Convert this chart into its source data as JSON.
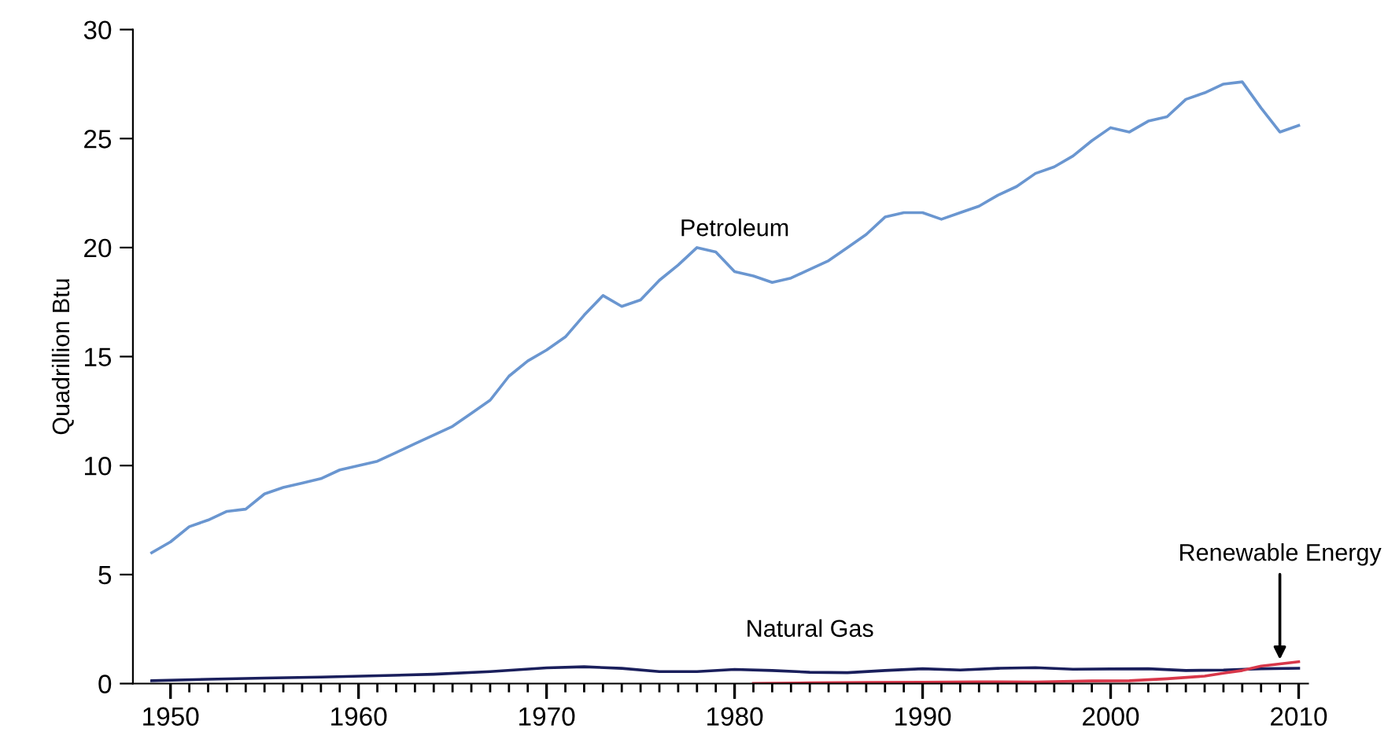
{
  "chart_data": {
    "type": "line",
    "ylabel": "Quadrillion Btu",
    "xlim": [
      1948,
      2010.5
    ],
    "ylim": [
      0,
      30
    ],
    "xticks": [
      1950,
      {
        "value": 1951,
        "label": null
      },
      {
        "value": 1952,
        "label": null
      },
      {
        "value": 1953,
        "label": null
      },
      {
        "value": 1954,
        "label": null
      },
      {
        "value": 1955,
        "label": null
      },
      {
        "value": 1956,
        "label": null
      },
      {
        "value": 1957,
        "label": null
      },
      {
        "value": 1958,
        "label": null
      },
      {
        "value": 1959,
        "label": null
      },
      1960,
      {
        "value": 1961,
        "label": null
      },
      {
        "value": 1962,
        "label": null
      },
      {
        "value": 1963,
        "label": null
      },
      {
        "value": 1964,
        "label": null
      },
      {
        "value": 1965,
        "label": null
      },
      {
        "value": 1966,
        "label": null
      },
      {
        "value": 1967,
        "label": null
      },
      {
        "value": 1968,
        "label": null
      },
      {
        "value": 1969,
        "label": null
      },
      1970,
      {
        "value": 1971,
        "label": null
      },
      {
        "value": 1972,
        "label": null
      },
      {
        "value": 1973,
        "label": null
      },
      {
        "value": 1974,
        "label": null
      },
      {
        "value": 1975,
        "label": null
      },
      {
        "value": 1976,
        "label": null
      },
      {
        "value": 1977,
        "label": null
      },
      {
        "value": 1978,
        "label": null
      },
      {
        "value": 1979,
        "label": null
      },
      1980,
      {
        "value": 1981,
        "label": null
      },
      {
        "value": 1982,
        "label": null
      },
      {
        "value": 1983,
        "label": null
      },
      {
        "value": 1984,
        "label": null
      },
      {
        "value": 1985,
        "label": null
      },
      {
        "value": 1986,
        "label": null
      },
      {
        "value": 1987,
        "label": null
      },
      {
        "value": 1988,
        "label": null
      },
      {
        "value": 1989,
        "label": null
      },
      1990,
      {
        "value": 1991,
        "label": null
      },
      {
        "value": 1992,
        "label": null
      },
      {
        "value": 1993,
        "label": null
      },
      {
        "value": 1994,
        "label": null
      },
      {
        "value": 1995,
        "label": null
      },
      {
        "value": 1996,
        "label": null
      },
      {
        "value": 1997,
        "label": null
      },
      {
        "value": 1998,
        "label": null
      },
      {
        "value": 1999,
        "label": null
      },
      2000,
      {
        "value": 2001,
        "label": null
      },
      {
        "value": 2002,
        "label": null
      },
      {
        "value": 2003,
        "label": null
      },
      {
        "value": 2004,
        "label": null
      },
      {
        "value": 2005,
        "label": null
      },
      {
        "value": 2006,
        "label": null
      },
      {
        "value": 2007,
        "label": null
      },
      {
        "value": 2008,
        "label": null
      },
      {
        "value": 2009,
        "label": null
      },
      2010
    ],
    "yticks": [
      0,
      5,
      10,
      15,
      20,
      25,
      30
    ],
    "grid": false,
    "legend": false,
    "marker": "none",
    "line_style": "solid",
    "series": [
      {
        "name": "Petroleum",
        "color": "#6a96d0",
        "x": [
          1949,
          1950,
          1951,
          1952,
          1953,
          1954,
          1955,
          1956,
          1957,
          1958,
          1959,
          1960,
          1961,
          1962,
          1963,
          1964,
          1965,
          1966,
          1967,
          1968,
          1969,
          1970,
          1971,
          1972,
          1973,
          1974,
          1975,
          1976,
          1977,
          1978,
          1979,
          1980,
          1981,
          1982,
          1983,
          1984,
          1985,
          1986,
          1987,
          1988,
          1989,
          1990,
          1991,
          1992,
          1993,
          1994,
          1995,
          1996,
          1997,
          1998,
          1999,
          2000,
          2001,
          2002,
          2003,
          2004,
          2005,
          2006,
          2007,
          2008,
          2009,
          2010
        ],
        "values": [
          6.0,
          6.5,
          7.2,
          7.5,
          7.9,
          8.0,
          8.7,
          9.0,
          9.2,
          9.4,
          9.8,
          10.0,
          10.2,
          10.6,
          11.0,
          11.4,
          11.8,
          12.4,
          13.0,
          14.1,
          14.8,
          15.3,
          15.9,
          16.9,
          17.8,
          17.3,
          17.6,
          18.5,
          19.2,
          20.0,
          19.8,
          18.9,
          18.7,
          18.4,
          18.6,
          19.0,
          19.4,
          20.0,
          20.6,
          21.4,
          21.6,
          21.6,
          21.3,
          21.6,
          21.9,
          22.4,
          22.8,
          23.4,
          23.7,
          24.2,
          24.9,
          25.5,
          25.3,
          25.8,
          26.0,
          26.8,
          27.1,
          27.5,
          27.6,
          26.4,
          25.3,
          25.6
        ]
      },
      {
        "name": "Natural Gas",
        "color": "#1a1f5c",
        "x": [
          1949,
          1952,
          1955,
          1958,
          1961,
          1964,
          1967,
          1970,
          1972,
          1974,
          1976,
          1978,
          1980,
          1982,
          1984,
          1986,
          1988,
          1990,
          1992,
          1994,
          1996,
          1998,
          2000,
          2002,
          2004,
          2006,
          2008,
          2010
        ],
        "values": [
          0.13,
          0.2,
          0.25,
          0.3,
          0.36,
          0.43,
          0.55,
          0.72,
          0.77,
          0.7,
          0.55,
          0.55,
          0.65,
          0.6,
          0.52,
          0.5,
          0.6,
          0.68,
          0.62,
          0.7,
          0.73,
          0.66,
          0.67,
          0.68,
          0.6,
          0.62,
          0.68,
          0.7
        ]
      },
      {
        "name": "Renewable Energy",
        "color": "#d8374a",
        "x": [
          1981,
          1984,
          1987,
          1990,
          1993,
          1996,
          1999,
          2001,
          2003,
          2005,
          2006,
          2007,
          2008,
          2009,
          2010
        ],
        "values": [
          0.01,
          0.03,
          0.05,
          0.06,
          0.08,
          0.07,
          0.12,
          0.13,
          0.22,
          0.34,
          0.48,
          0.6,
          0.8,
          0.9,
          1.0
        ]
      }
    ]
  }
}
